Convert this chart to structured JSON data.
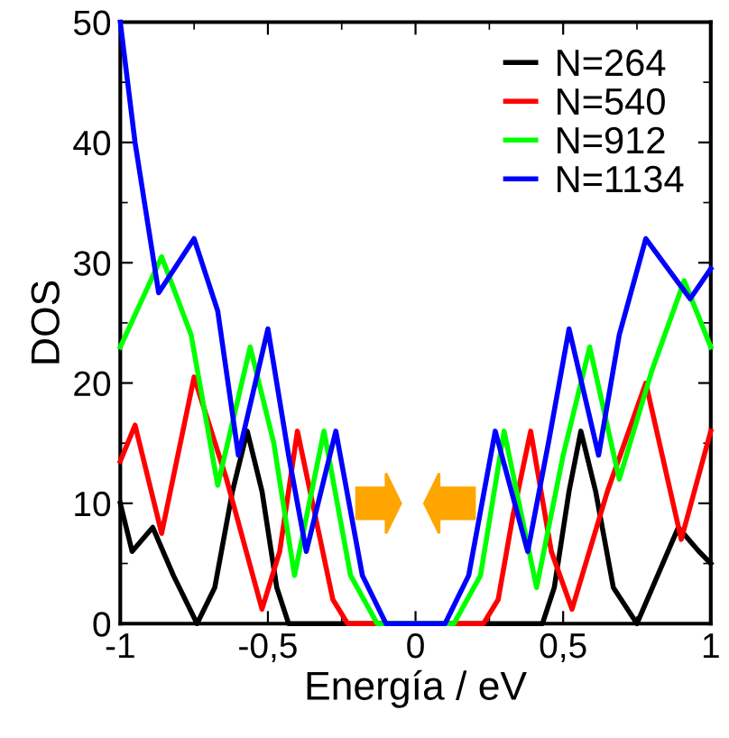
{
  "chart_data": {
    "type": "line",
    "xlabel": "Energía / eV",
    "ylabel": "DOS",
    "xlim": [
      -1,
      1
    ],
    "ylim": [
      0,
      50
    ],
    "xticks": [
      {
        "value": -1,
        "label": "-1"
      },
      {
        "value": -0.5,
        "label": "-0,5"
      },
      0,
      {
        "value": 0.5,
        "label": "0,5"
      },
      1
    ],
    "yticks": [
      0,
      10,
      20,
      30,
      40,
      50
    ],
    "legend": "top right",
    "grid": false,
    "marker": "none",
    "line_style": "solid",
    "series": [
      {
        "name": "N=264",
        "color": "#000000",
        "x": [
          -1,
          -0.96,
          -0.89,
          -0.82,
          -0.74,
          -0.68,
          -0.62,
          -0.57,
          -0.52,
          -0.47,
          -0.43,
          -0.3,
          0,
          0.3,
          0.43,
          0.47,
          0.52,
          0.56,
          0.61,
          0.67,
          0.75,
          0.82,
          0.89,
          0.96,
          1
        ],
        "values": [
          10,
          6,
          8,
          4,
          0,
          3,
          11,
          16,
          11,
          3,
          0,
          0,
          0,
          0,
          0,
          3,
          11,
          16,
          11,
          3,
          0,
          4,
          8,
          6,
          5
        ]
      },
      {
        "name": "N=540",
        "color": "#ff0000",
        "x": [
          -1,
          -0.95,
          -0.86,
          -0.75,
          -0.64,
          -0.52,
          -0.46,
          -0.4,
          -0.34,
          -0.28,
          -0.23,
          -0.1,
          0,
          0.1,
          0.23,
          0.28,
          0.33,
          0.39,
          0.46,
          0.53,
          0.65,
          0.78,
          0.9,
          1
        ],
        "values": [
          13.5,
          16.5,
          7.5,
          20.5,
          12,
          1.2,
          6,
          16,
          9,
          2,
          0,
          0,
          0,
          0,
          0,
          2,
          9,
          16,
          6,
          1.2,
          11,
          20,
          7,
          16
        ]
      },
      {
        "name": "N=912",
        "color": "#00ff00",
        "x": [
          -1,
          -0.86,
          -0.76,
          -0.67,
          -0.56,
          -0.48,
          -0.41,
          -0.31,
          -0.22,
          -0.13,
          0,
          0.13,
          0.22,
          0.3,
          0.41,
          0.5,
          0.59,
          0.69,
          0.8,
          0.91,
          1
        ],
        "values": [
          23,
          30.5,
          24,
          11.5,
          23,
          15,
          4,
          16,
          4,
          0,
          0,
          0,
          4,
          16,
          3,
          14,
          23,
          12,
          21,
          28.5,
          23
        ]
      },
      {
        "name": "N=1134",
        "color": "#0000ff",
        "x": [
          -1,
          -0.95,
          -0.87,
          -0.75,
          -0.67,
          -0.6,
          -0.5,
          -0.43,
          -0.37,
          -0.27,
          -0.18,
          -0.1,
          0,
          0.1,
          0.18,
          0.27,
          0.38,
          0.45,
          0.52,
          0.62,
          0.69,
          0.78,
          0.93,
          1
        ],
        "values": [
          50,
          40,
          27.5,
          32,
          26,
          14,
          24.5,
          14,
          6,
          16,
          4,
          0,
          0,
          0,
          4,
          16,
          6,
          15,
          24.5,
          14,
          24,
          32,
          27,
          29.5
        ]
      }
    ]
  }
}
